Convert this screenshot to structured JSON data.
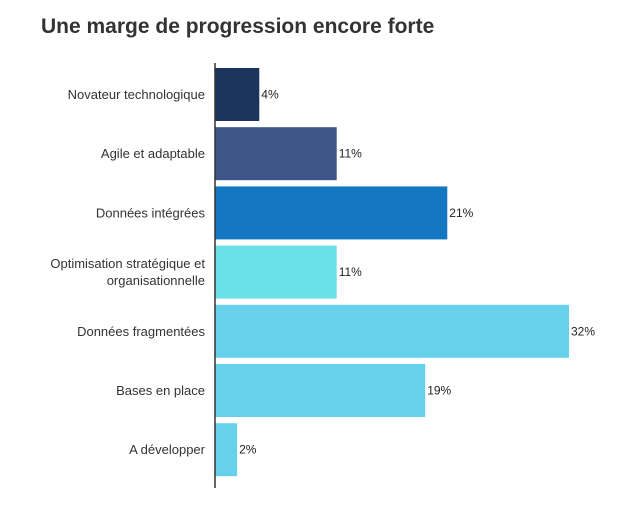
{
  "chart_data": {
    "type": "bar",
    "orientation": "horizontal",
    "title": "Une marge de progression encore forte",
    "categories": [
      "Novateur technologique",
      "Agile et adaptable",
      "Données intégrées",
      "Optimisation stratégique et organisationnelle",
      "Données fragmentées",
      "Bases en place",
      "A développer"
    ],
    "category_lines": [
      [
        "Novateur technologique"
      ],
      [
        "Agile et adaptable"
      ],
      [
        "Données intégrées"
      ],
      [
        "Optimisation stratégique et",
        "organisationnelle"
      ],
      [
        "Données fragmentées"
      ],
      [
        "Bases en place"
      ],
      [
        "A développer"
      ]
    ],
    "values": [
      4,
      11,
      21,
      11,
      32,
      19,
      2
    ],
    "value_labels": [
      "4%",
      "11%",
      "21%",
      "11%",
      "32%",
      "19%",
      "2%"
    ],
    "colors": [
      "#1a365f",
      "#3d5589",
      "#1477c2",
      "#6ae0e8",
      "#67d0ea",
      "#67d0ea",
      "#67d0ea"
    ],
    "xlim": [
      0,
      32
    ],
    "unit": "%",
    "grid": false,
    "legend": "none"
  }
}
